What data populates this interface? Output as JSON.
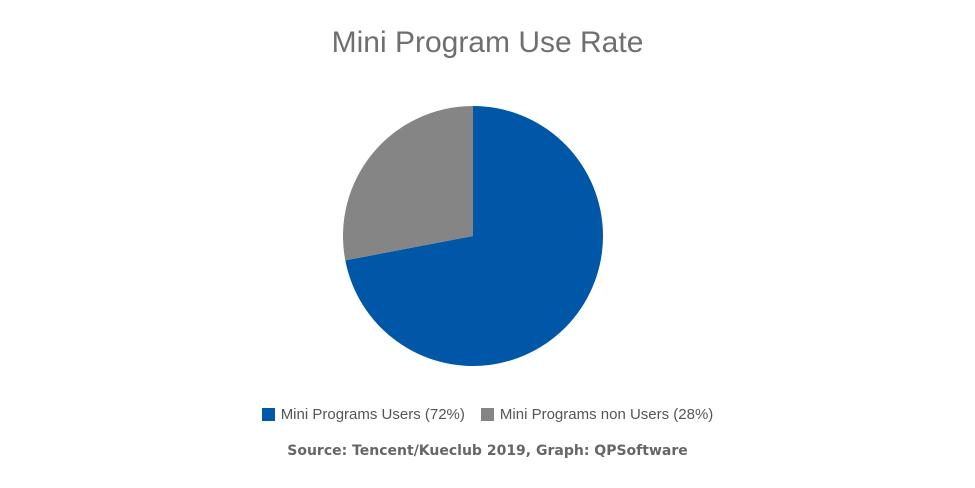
{
  "chart_data": {
    "type": "pie",
    "title": "Mini Program Use Rate",
    "slices": [
      {
        "label": "Mini Programs Users (72%)",
        "value": 72,
        "color": "#0057a8"
      },
      {
        "label": "Mini Programs non Users (28%)",
        "value": 28,
        "color": "#858585"
      }
    ],
    "legend_position": "bottom",
    "source": "Source: Tencent/Kueclub 2019, Graph: QPSoftware"
  }
}
